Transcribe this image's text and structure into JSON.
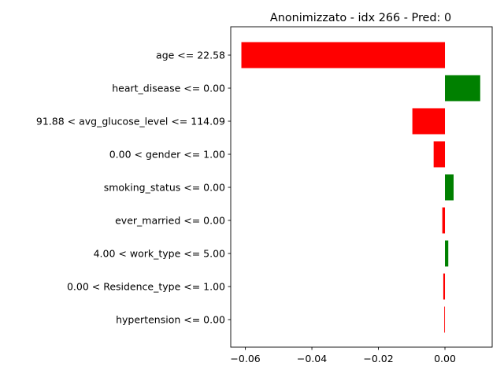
{
  "chart_data": {
    "type": "bar",
    "orientation": "horizontal",
    "title": "Anonimizzato - idx 266 - Pred: 0",
    "xlabel": "",
    "ylabel": "",
    "xlim": [
      -0.0644,
      0.0142
    ],
    "xticks": [
      -0.06,
      -0.04,
      -0.02,
      0.0
    ],
    "xtick_labels": [
      "−0.06",
      "−0.04",
      "−0.02",
      "0.00"
    ],
    "grid": false,
    "legend": null,
    "positive_color": "#008000",
    "negative_color": "#ff0000",
    "categories": [
      "age <= 22.58",
      "heart_disease <= 0.00",
      "91.88 < avg_glucose_level <= 114.09",
      "0.00 < gender <= 1.00",
      "smoking_status <= 0.00",
      "ever_married <= 0.00",
      "4.00 < work_type <= 5.00",
      "0.00 < Residence_type <= 1.00",
      "hypertension <= 0.00"
    ],
    "values": [
      -0.0612,
      0.0106,
      -0.0098,
      -0.0034,
      0.0026,
      -0.0008,
      0.001,
      -0.0005,
      -0.0002
    ]
  }
}
